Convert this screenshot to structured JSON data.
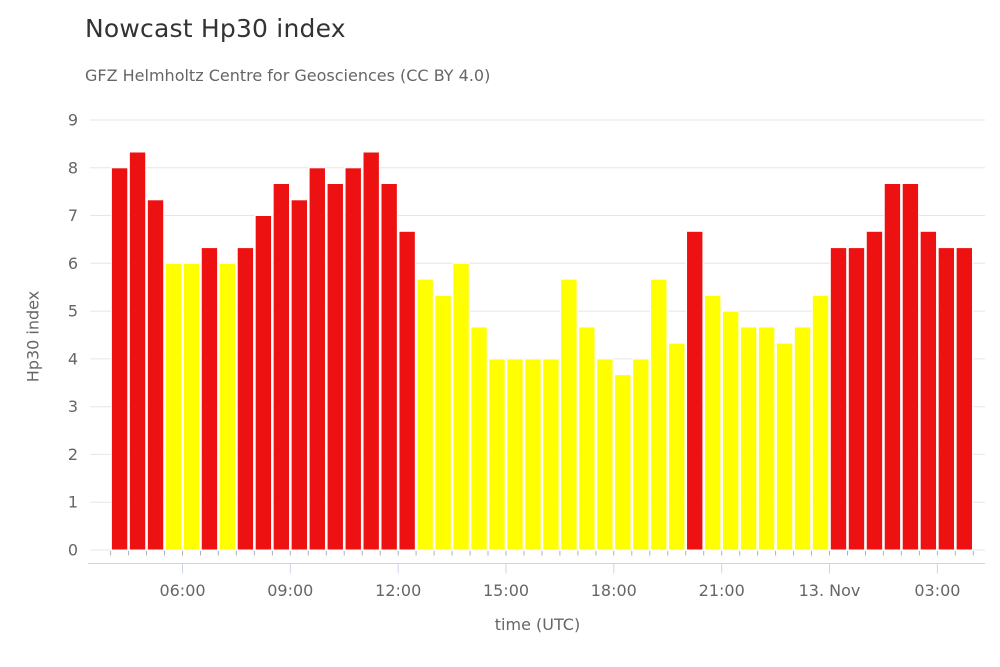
{
  "header": {
    "title": "Nowcast Hp30 index",
    "subtitle": "GFZ Helmholtz Centre for Geosciences (CC BY 4.0)"
  },
  "colors": {
    "red": "#ee1111",
    "yellow": "#ffff00",
    "bar_border": "#ffffff",
    "grid": "#e6e6e6",
    "axis_line": "#ccd6eb",
    "minor_tick": "#b0b0b0",
    "label": "#666666",
    "title": "#333333"
  },
  "chart_data": {
    "type": "bar",
    "title": "Nowcast Hp30 index",
    "subtitle": "GFZ Helmholtz Centre for Geosciences (CC BY 4.0)",
    "xlabel": "time (UTC)",
    "ylabel": "Hp30 index",
    "ylim": [
      0,
      9
    ],
    "yticks": [
      0,
      1,
      2,
      3,
      4,
      5,
      6,
      7,
      8,
      9
    ],
    "grid": true,
    "legend": false,
    "bar_interval_minutes": 30,
    "x_tick_labels": [
      "06:00",
      "09:00",
      "12:00",
      "15:00",
      "18:00",
      "21:00",
      "13. Nov",
      "03:00"
    ],
    "x_tick_slots": [
      4,
      10,
      16,
      22,
      28,
      34,
      40,
      46
    ],
    "color_rule": "red when Hp30 > 6, yellow otherwise",
    "series": [
      {
        "name": "Hp30",
        "points": [
          {
            "time": "04:00",
            "value": 8.0,
            "color": "red"
          },
          {
            "time": "04:30",
            "value": 8.33,
            "color": "red"
          },
          {
            "time": "05:00",
            "value": 7.33,
            "color": "red"
          },
          {
            "time": "05:30",
            "value": 6.0,
            "color": "yellow"
          },
          {
            "time": "06:00",
            "value": 6.0,
            "color": "yellow"
          },
          {
            "time": "06:30",
            "value": 6.33,
            "color": "red"
          },
          {
            "time": "07:00",
            "value": 6.0,
            "color": "yellow"
          },
          {
            "time": "07:30",
            "value": 6.33,
            "color": "red"
          },
          {
            "time": "08:00",
            "value": 7.0,
            "color": "red"
          },
          {
            "time": "08:30",
            "value": 7.67,
            "color": "red"
          },
          {
            "time": "09:00",
            "value": 7.33,
            "color": "red"
          },
          {
            "time": "09:30",
            "value": 8.0,
            "color": "red"
          },
          {
            "time": "10:00",
            "value": 7.67,
            "color": "red"
          },
          {
            "time": "10:30",
            "value": 8.0,
            "color": "red"
          },
          {
            "time": "11:00",
            "value": 8.33,
            "color": "red"
          },
          {
            "time": "11:30",
            "value": 7.67,
            "color": "red"
          },
          {
            "time": "12:00",
            "value": 6.67,
            "color": "red"
          },
          {
            "time": "12:30",
            "value": 5.67,
            "color": "yellow"
          },
          {
            "time": "13:00",
            "value": 5.33,
            "color": "yellow"
          },
          {
            "time": "13:30",
            "value": 6.0,
            "color": "yellow"
          },
          {
            "time": "14:00",
            "value": 4.67,
            "color": "yellow"
          },
          {
            "time": "14:30",
            "value": 4.0,
            "color": "yellow"
          },
          {
            "time": "15:00",
            "value": 4.0,
            "color": "yellow"
          },
          {
            "time": "15:30",
            "value": 4.0,
            "color": "yellow"
          },
          {
            "time": "16:00",
            "value": 4.0,
            "color": "yellow"
          },
          {
            "time": "16:30",
            "value": 5.67,
            "color": "yellow"
          },
          {
            "time": "17:00",
            "value": 4.67,
            "color": "yellow"
          },
          {
            "time": "17:30",
            "value": 4.0,
            "color": "yellow"
          },
          {
            "time": "18:00",
            "value": 3.67,
            "color": "yellow"
          },
          {
            "time": "18:30",
            "value": 4.0,
            "color": "yellow"
          },
          {
            "time": "19:00",
            "value": 5.67,
            "color": "yellow"
          },
          {
            "time": "19:30",
            "value": 4.33,
            "color": "yellow"
          },
          {
            "time": "20:00",
            "value": 6.67,
            "color": "red"
          },
          {
            "time": "20:30",
            "value": 5.33,
            "color": "yellow"
          },
          {
            "time": "21:00",
            "value": 5.0,
            "color": "yellow"
          },
          {
            "time": "21:30",
            "value": 4.67,
            "color": "yellow"
          },
          {
            "time": "22:00",
            "value": 4.67,
            "color": "yellow"
          },
          {
            "time": "22:30",
            "value": 4.33,
            "color": "yellow"
          },
          {
            "time": "23:00",
            "value": 4.67,
            "color": "yellow"
          },
          {
            "time": "23:30",
            "value": 5.33,
            "color": "yellow"
          },
          {
            "time": "00:00",
            "value": 6.33,
            "color": "red"
          },
          {
            "time": "00:30",
            "value": 6.33,
            "color": "red"
          },
          {
            "time": "01:00",
            "value": 6.67,
            "color": "red"
          },
          {
            "time": "01:30",
            "value": 7.67,
            "color": "red"
          },
          {
            "time": "02:00",
            "value": 7.67,
            "color": "red"
          },
          {
            "time": "02:30",
            "value": 6.67,
            "color": "red"
          },
          {
            "time": "03:00",
            "value": 6.33,
            "color": "red"
          },
          {
            "time": "03:30",
            "value": 6.33,
            "color": "red"
          }
        ]
      }
    ]
  }
}
